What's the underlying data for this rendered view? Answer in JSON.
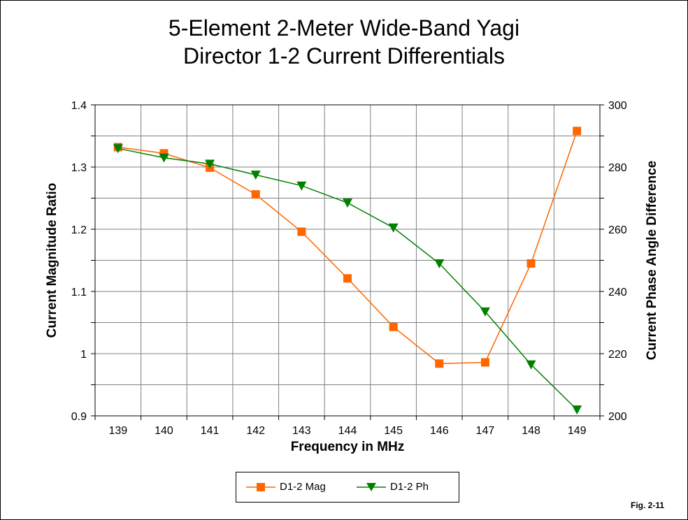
{
  "chart_data": {
    "type": "line",
    "title": "5-Element 2-Meter Wide-Band Yagi",
    "subtitle": "Director 1-2 Current Differentials",
    "xlabel": "Frequency in MHz",
    "ylabel": "Current Magnitude Ratio",
    "y2label": "Current Phase Angle Difference",
    "x": [
      139,
      140,
      141,
      142,
      143,
      144,
      145,
      146,
      147,
      148,
      149
    ],
    "x_ticks": [
      "139",
      "140",
      "141",
      "142",
      "143",
      "144",
      "145",
      "146",
      "147",
      "148",
      "149"
    ],
    "ylim": [
      0.9,
      1.4
    ],
    "y_ticks": [
      "1.4",
      "1.3",
      "1.2",
      "1.1",
      "1",
      "0.9"
    ],
    "y2lim": [
      200,
      300
    ],
    "y2_ticks": [
      "300",
      "280",
      "260",
      "240",
      "220",
      "200"
    ],
    "grid": true,
    "legend_position": "bottom-center",
    "series": [
      {
        "name": "D1-2 Mag",
        "axis": "left",
        "color": "#ff6600",
        "marker": "square",
        "values": [
          1.332,
          1.322,
          1.299,
          1.256,
          1.196,
          1.121,
          1.043,
          0.984,
          0.986,
          1.145,
          1.358
        ]
      },
      {
        "name": "D1-2 Ph",
        "axis": "right",
        "color": "#008000",
        "marker": "triangle-down",
        "values": [
          286,
          283,
          281,
          277.5,
          274,
          268.5,
          260.5,
          249,
          233.5,
          216.5,
          202
        ]
      }
    ]
  },
  "figure_label": "Fig. 2-11"
}
